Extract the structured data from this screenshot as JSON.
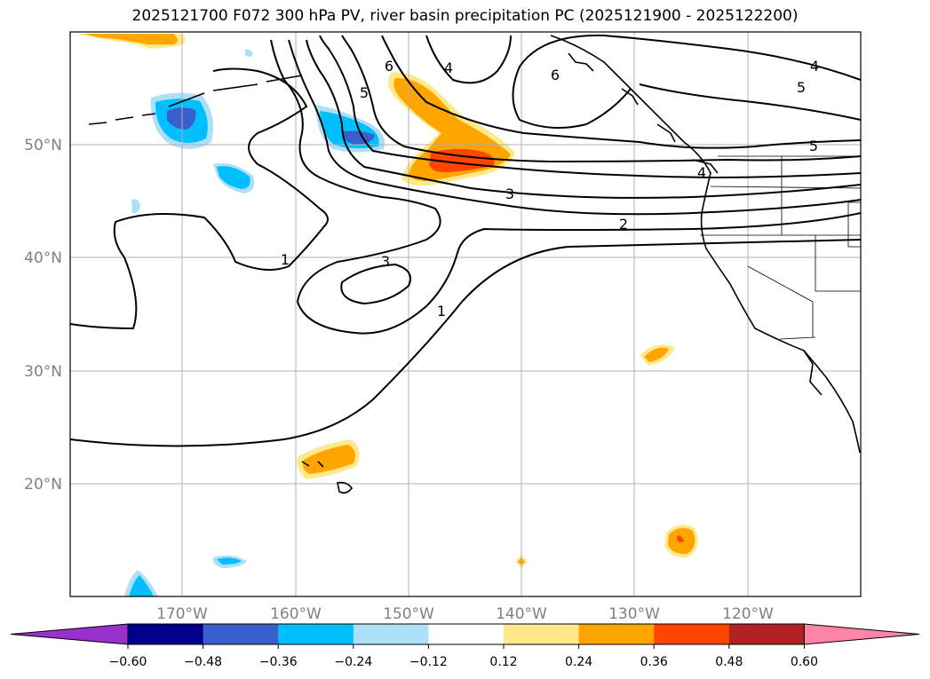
{
  "title": "2025121700 F072 300 hPa PV, river basin precipitation PC (2025121900 - 2025122200)",
  "lat_labels": [
    "50°N",
    "40°N",
    "30°N",
    "20°N"
  ],
  "lon_labels": [
    "170°W",
    "160°W",
    "150°W",
    "140°W",
    "130°W",
    "120°W"
  ],
  "contour_labels": [
    "6",
    "5",
    "4",
    "6",
    "4",
    "5",
    "5",
    "4",
    "3",
    "2",
    "1",
    "3",
    "1"
  ],
  "colorbar": {
    "ticks": [
      "−0.60",
      "−0.48",
      "−0.36",
      "−0.24",
      "−0.12",
      "0.12",
      "0.24",
      "0.36",
      "0.48",
      "0.60"
    ],
    "colors": [
      "#9932CC",
      "#00008B",
      "#3A5FCD",
      "#00BFFF",
      "#ADE0F8",
      "#FFFFFF",
      "#FFE98A",
      "#FFA500",
      "#FF4500",
      "#B22222",
      "#FF85A8"
    ]
  }
}
